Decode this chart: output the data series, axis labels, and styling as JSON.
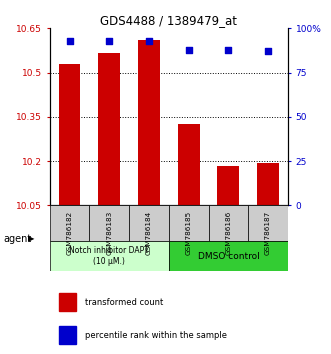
{
  "title": "GDS4488 / 1389479_at",
  "samples": [
    "GSM786182",
    "GSM786183",
    "GSM786184",
    "GSM786185",
    "GSM786186",
    "GSM786187"
  ],
  "bar_values": [
    10.53,
    10.565,
    10.61,
    10.325,
    10.183,
    10.195
  ],
  "dot_values": [
    93,
    93,
    93,
    88,
    88,
    87
  ],
  "ylim_left": [
    10.05,
    10.65
  ],
  "ylim_right": [
    0,
    100
  ],
  "yticks_left": [
    10.05,
    10.2,
    10.35,
    10.5,
    10.65
  ],
  "ytick_labels_left": [
    "10.05",
    "10.2",
    "10.35",
    "10.5",
    "10.65"
  ],
  "yticks_right": [
    0,
    25,
    50,
    75,
    100
  ],
  "ytick_labels_right": [
    "0",
    "25",
    "50",
    "75",
    "100%"
  ],
  "bar_color": "#cc0000",
  "dot_color": "#0000cc",
  "group1_label": "Notch inhibitor DAPT\n(10 μM.)",
  "group2_label": "DMSO control",
  "group1_color": "#ccffcc",
  "group2_color": "#33cc33",
  "legend_bar_label": "transformed count",
  "legend_dot_label": "percentile rank within the sample",
  "agent_label": "agent",
  "bar_width": 0.55,
  "cell_bg": "#cccccc"
}
